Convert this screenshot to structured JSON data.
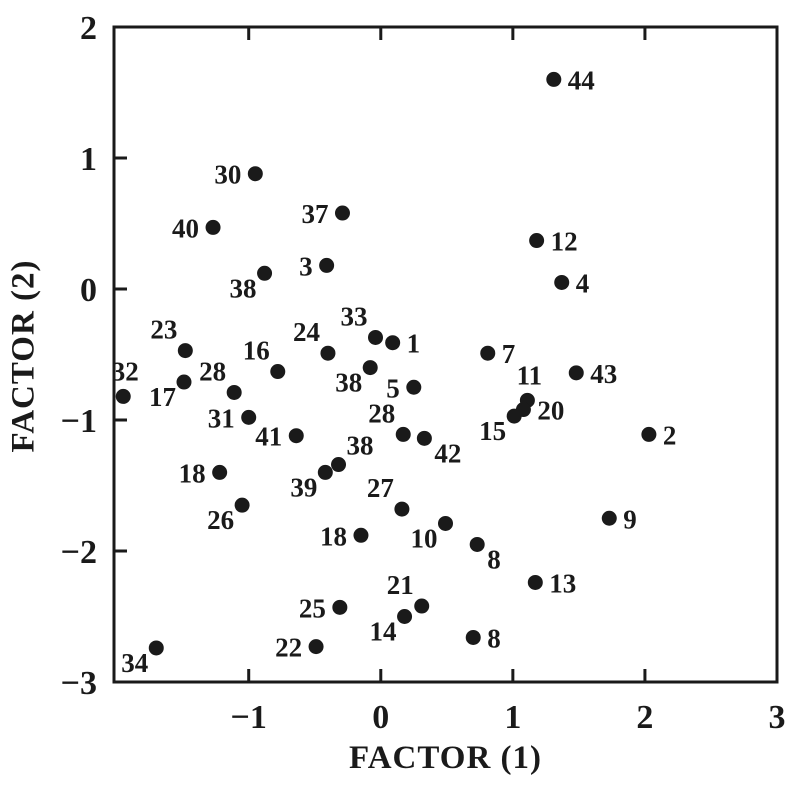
{
  "chart_data": {
    "type": "scatter",
    "title": "",
    "xlabel": "FACTOR (1)",
    "ylabel": "FACTOR (2)",
    "xlim": [
      -2.02,
      3
    ],
    "ylim": [
      -3,
      2
    ],
    "grid": false,
    "legend": "none",
    "marker": {
      "color": "#1a1a1a",
      "radius": 7.5
    },
    "axis_color": "#1a1a1a",
    "x_ticks": {
      "label_values": [
        -1,
        0,
        1,
        2,
        3
      ],
      "labels": [
        "−1",
        "0",
        "1",
        "2",
        "3"
      ],
      "mark_values": [
        -1,
        0,
        1,
        2
      ]
    },
    "y_ticks": {
      "label_values": [
        2,
        1,
        0,
        -1,
        -2,
        -3
      ],
      "labels": [
        "2",
        "1",
        "0",
        "−1",
        "−2",
        "−3"
      ],
      "mark_values": [
        1,
        0,
        -1,
        -2
      ]
    },
    "points": [
      {
        "label": "30",
        "x": -0.95,
        "y": 0.88,
        "label_pos": "left"
      },
      {
        "label": "40",
        "x": -1.27,
        "y": 0.47,
        "label_pos": "left"
      },
      {
        "label": "37",
        "x": -0.29,
        "y": 0.58,
        "label_pos": "left"
      },
      {
        "label": "38",
        "x": -0.88,
        "y": 0.12,
        "label_pos": "below-left"
      },
      {
        "label": "3",
        "x": -0.41,
        "y": 0.18,
        "label_pos": "left"
      },
      {
        "label": "44",
        "x": 1.31,
        "y": 1.6,
        "label_pos": "right"
      },
      {
        "label": "12",
        "x": 1.18,
        "y": 0.37,
        "label_pos": "right"
      },
      {
        "label": "4",
        "x": 1.37,
        "y": 0.05,
        "label_pos": "right"
      },
      {
        "label": "23",
        "x": -1.48,
        "y": -0.47,
        "label_pos": "above-left"
      },
      {
        "label": "32",
        "x": -1.95,
        "y": -0.82,
        "label_pos": "above"
      },
      {
        "label": "17",
        "x": -1.49,
        "y": -0.71,
        "label_pos": "below-left"
      },
      {
        "label": "28",
        "x": -1.11,
        "y": -0.79,
        "label_pos": "above-left"
      },
      {
        "label": "16",
        "x": -0.78,
        "y": -0.63,
        "label_pos": "above-left"
      },
      {
        "label": "24",
        "x": -0.4,
        "y": -0.49,
        "label_pos": "above-left"
      },
      {
        "label": "33",
        "x": -0.04,
        "y": -0.37,
        "label_pos": "above-left"
      },
      {
        "label": "1",
        "x": 0.09,
        "y": -0.41,
        "label_pos": "right"
      },
      {
        "label": "38",
        "x": -0.08,
        "y": -0.6,
        "label_pos": "below-left"
      },
      {
        "label": "5",
        "x": 0.25,
        "y": -0.75,
        "label_pos": "left"
      },
      {
        "label": "7",
        "x": 0.81,
        "y": -0.49,
        "label_pos": "right"
      },
      {
        "label": "43",
        "x": 1.48,
        "y": -0.64,
        "label_pos": "right"
      },
      {
        "label": "11",
        "x": 1.11,
        "y": -0.85,
        "label_pos": "above"
      },
      {
        "label": "20",
        "x": 1.08,
        "y": -0.92,
        "label_pos": "right"
      },
      {
        "label": "15",
        "x": 1.01,
        "y": -0.97,
        "label_pos": "below-left"
      },
      {
        "label": "2",
        "x": 2.03,
        "y": -1.11,
        "label_pos": "right"
      },
      {
        "label": "31",
        "x": -1.0,
        "y": -0.98,
        "label_pos": "left"
      },
      {
        "label": "41",
        "x": -0.64,
        "y": -1.12,
        "label_pos": "left"
      },
      {
        "label": "28",
        "x": 0.17,
        "y": -1.11,
        "label_pos": "above-left"
      },
      {
        "label": "42",
        "x": 0.33,
        "y": -1.14,
        "label_pos": "below-right"
      },
      {
        "label": "38",
        "x": -0.32,
        "y": -1.34,
        "label_pos": "above-right"
      },
      {
        "label": "39",
        "x": -0.42,
        "y": -1.4,
        "label_pos": "below-left"
      },
      {
        "label": "18",
        "x": -1.22,
        "y": -1.4,
        "label_pos": "left"
      },
      {
        "label": "26",
        "x": -1.05,
        "y": -1.65,
        "label_pos": "below-left"
      },
      {
        "label": "27",
        "x": 0.16,
        "y": -1.68,
        "label_pos": "above-left"
      },
      {
        "label": "18",
        "x": -0.15,
        "y": -1.88,
        "label_pos": "left"
      },
      {
        "label": "10",
        "x": 0.49,
        "y": -1.79,
        "label_pos": "below-left"
      },
      {
        "label": "8",
        "x": 0.73,
        "y": -1.95,
        "label_pos": "below-right"
      },
      {
        "label": "13",
        "x": 1.17,
        "y": -2.24,
        "label_pos": "right"
      },
      {
        "label": "9",
        "x": 1.73,
        "y": -1.75,
        "label_pos": "right"
      },
      {
        "label": "21",
        "x": 0.31,
        "y": -2.42,
        "label_pos": "above-left"
      },
      {
        "label": "14",
        "x": 0.18,
        "y": -2.5,
        "label_pos": "below-left"
      },
      {
        "label": "25",
        "x": -0.31,
        "y": -2.43,
        "label_pos": "left"
      },
      {
        "label": "22",
        "x": -0.49,
        "y": -2.73,
        "label_pos": "left"
      },
      {
        "label": "8",
        "x": 0.7,
        "y": -2.66,
        "label_pos": "right"
      },
      {
        "label": "34",
        "x": -1.7,
        "y": -2.74,
        "label_pos": "below-left"
      }
    ]
  }
}
